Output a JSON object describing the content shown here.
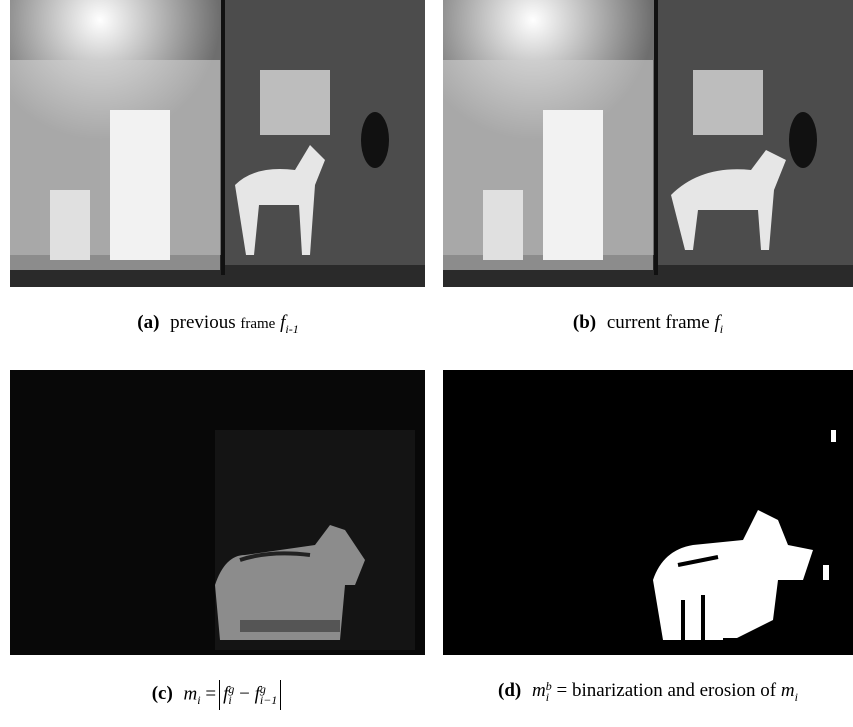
{
  "panels": [
    {
      "caption": [
        "(a)",
        "previous",
        "frame",
        "f",
        "i-1"
      ]
    },
    {
      "caption": [
        "(b)",
        "current frame",
        "f",
        "i"
      ]
    },
    {
      "caption": [
        "(c)",
        "m",
        "i",
        "=",
        "f",
        "g",
        "i",
        "−",
        "f",
        "g",
        "i−1"
      ]
    },
    {
      "caption": [
        "(d)",
        "m",
        "i",
        "b",
        "= binarization and erosion of",
        "m",
        "i"
      ]
    }
  ]
}
